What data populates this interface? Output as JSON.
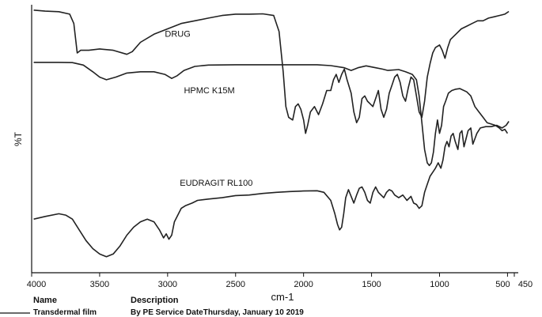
{
  "chart_data": {
    "type": "line",
    "title": "",
    "xlabel": "cm-1",
    "ylabel": "%T",
    "xlim": [
      4000,
      450
    ],
    "x_reversed": true,
    "ylim": [
      0,
      100
    ],
    "grid": false,
    "legend": "none",
    "x_ticks": [
      4000,
      3500,
      3000,
      2500,
      2000,
      1500,
      1000,
      500,
      450
    ],
    "x_tick_labels": [
      "4000",
      "3500",
      "3000",
      "2500",
      "2000",
      "1500",
      "1000",
      "500",
      "450"
    ],
    "line_color": "#222222",
    "series": [
      {
        "name": "DRUG",
        "label_at": [
          3020,
          88
        ],
        "points": [
          [
            3985,
            98
          ],
          [
            3900,
            97.6
          ],
          [
            3800,
            97.4
          ],
          [
            3720,
            96.5
          ],
          [
            3690,
            93
          ],
          [
            3665,
            82
          ],
          [
            3640,
            83
          ],
          [
            3580,
            83
          ],
          [
            3500,
            83.5
          ],
          [
            3400,
            83
          ],
          [
            3300,
            81.5
          ],
          [
            3260,
            82.5
          ],
          [
            3200,
            86
          ],
          [
            3100,
            89
          ],
          [
            3000,
            91
          ],
          [
            2900,
            93
          ],
          [
            2800,
            94
          ],
          [
            2700,
            95
          ],
          [
            2600,
            96
          ],
          [
            2500,
            96.5
          ],
          [
            2400,
            96.5
          ],
          [
            2300,
            96.6
          ],
          [
            2220,
            96
          ],
          [
            2180,
            90
          ],
          [
            2150,
            75
          ],
          [
            2130,
            62
          ],
          [
            2110,
            58
          ],
          [
            2080,
            57
          ],
          [
            2060,
            62
          ],
          [
            2040,
            63
          ],
          [
            2020,
            61
          ],
          [
            2000,
            57
          ],
          [
            1985,
            52
          ],
          [
            1970,
            55
          ],
          [
            1950,
            60
          ],
          [
            1920,
            62
          ],
          [
            1890,
            59
          ],
          [
            1860,
            63
          ],
          [
            1830,
            68
          ],
          [
            1800,
            68
          ],
          [
            1780,
            72
          ],
          [
            1760,
            74
          ],
          [
            1740,
            71
          ],
          [
            1720,
            74
          ],
          [
            1700,
            76
          ],
          [
            1680,
            72
          ],
          [
            1650,
            67
          ],
          [
            1630,
            60
          ],
          [
            1610,
            56
          ],
          [
            1590,
            58
          ],
          [
            1570,
            65
          ],
          [
            1550,
            66
          ],
          [
            1530,
            64
          ],
          [
            1510,
            63
          ],
          [
            1490,
            62
          ],
          [
            1470,
            65
          ],
          [
            1450,
            68
          ],
          [
            1430,
            61
          ],
          [
            1410,
            58
          ],
          [
            1390,
            61
          ],
          [
            1370,
            67
          ],
          [
            1350,
            70
          ],
          [
            1330,
            73
          ],
          [
            1310,
            74
          ],
          [
            1290,
            71
          ],
          [
            1270,
            66
          ],
          [
            1250,
            64
          ],
          [
            1230,
            69
          ],
          [
            1210,
            73
          ],
          [
            1190,
            72
          ],
          [
            1170,
            66
          ],
          [
            1150,
            60
          ],
          [
            1130,
            58
          ],
          [
            1110,
            64
          ],
          [
            1090,
            73
          ],
          [
            1070,
            78
          ],
          [
            1050,
            82
          ],
          [
            1030,
            84
          ],
          [
            1000,
            85
          ],
          [
            980,
            83
          ],
          [
            960,
            80
          ],
          [
            940,
            84
          ],
          [
            920,
            87
          ],
          [
            880,
            89
          ],
          [
            840,
            91
          ],
          [
            800,
            92
          ],
          [
            760,
            93
          ],
          [
            720,
            94
          ],
          [
            680,
            94
          ],
          [
            640,
            95
          ],
          [
            600,
            95.5
          ],
          [
            560,
            96
          ],
          [
            520,
            96.5
          ],
          [
            490,
            97.5
          ]
        ]
      },
      {
        "name": "HPMC K15M",
        "label_at": [
          2880,
          67
        ],
        "points": [
          [
            3985,
            78.5
          ],
          [
            3900,
            78.5
          ],
          [
            3800,
            78.5
          ],
          [
            3700,
            78.4
          ],
          [
            3620,
            77.5
          ],
          [
            3550,
            75
          ],
          [
            3500,
            73
          ],
          [
            3450,
            72
          ],
          [
            3380,
            73
          ],
          [
            3300,
            74.5
          ],
          [
            3200,
            75
          ],
          [
            3100,
            75
          ],
          [
            3020,
            74
          ],
          [
            2970,
            72.5
          ],
          [
            2930,
            73.5
          ],
          [
            2880,
            75.5
          ],
          [
            2800,
            77
          ],
          [
            2700,
            77.5
          ],
          [
            2500,
            77.6
          ],
          [
            2300,
            77.6
          ],
          [
            2100,
            77.6
          ],
          [
            1900,
            77.6
          ],
          [
            1800,
            77.3
          ],
          [
            1700,
            76.5
          ],
          [
            1650,
            75.5
          ],
          [
            1600,
            76.5
          ],
          [
            1540,
            77.2
          ],
          [
            1470,
            76.5
          ],
          [
            1420,
            76
          ],
          [
            1380,
            75.5
          ],
          [
            1300,
            75.8
          ],
          [
            1250,
            75
          ],
          [
            1200,
            74
          ],
          [
            1170,
            72
          ],
          [
            1150,
            66
          ],
          [
            1130,
            56
          ],
          [
            1110,
            46
          ],
          [
            1090,
            41
          ],
          [
            1075,
            40
          ],
          [
            1060,
            41
          ],
          [
            1045,
            45
          ],
          [
            1030,
            52
          ],
          [
            1015,
            57
          ],
          [
            1000,
            52
          ],
          [
            985,
            55
          ],
          [
            970,
            62
          ],
          [
            955,
            64
          ],
          [
            935,
            67
          ],
          [
            910,
            68
          ],
          [
            880,
            68.5
          ],
          [
            850,
            68.7
          ],
          [
            800,
            67.5
          ],
          [
            770,
            66
          ],
          [
            740,
            62
          ],
          [
            710,
            60
          ],
          [
            680,
            58
          ],
          [
            650,
            56
          ],
          [
            620,
            55.5
          ],
          [
            590,
            55
          ],
          [
            560,
            54
          ],
          [
            540,
            53
          ],
          [
            520,
            53.5
          ],
          [
            500,
            52
          ]
        ]
      },
      {
        "name": "EUDRAGIT RL100",
        "label_at": [
          2910,
          32.5
        ],
        "points": [
          [
            3985,
            20
          ],
          [
            3900,
            21
          ],
          [
            3800,
            22
          ],
          [
            3750,
            21.5
          ],
          [
            3700,
            20
          ],
          [
            3650,
            16
          ],
          [
            3600,
            12
          ],
          [
            3550,
            9
          ],
          [
            3500,
            7
          ],
          [
            3450,
            6
          ],
          [
            3400,
            7
          ],
          [
            3350,
            10
          ],
          [
            3300,
            14
          ],
          [
            3250,
            17
          ],
          [
            3200,
            19
          ],
          [
            3150,
            20
          ],
          [
            3100,
            19
          ],
          [
            3060,
            16
          ],
          [
            3030,
            13
          ],
          [
            3010,
            14.5
          ],
          [
            2990,
            12.5
          ],
          [
            2970,
            14
          ],
          [
            2950,
            19
          ],
          [
            2920,
            22
          ],
          [
            2900,
            24
          ],
          [
            2870,
            25
          ],
          [
            2820,
            26
          ],
          [
            2780,
            27
          ],
          [
            2700,
            27.5
          ],
          [
            2600,
            28
          ],
          [
            2500,
            28.8
          ],
          [
            2400,
            29
          ],
          [
            2300,
            29.6
          ],
          [
            2200,
            30
          ],
          [
            2100,
            30.3
          ],
          [
            2000,
            30.5
          ],
          [
            1900,
            30.6
          ],
          [
            1850,
            30
          ],
          [
            1800,
            27
          ],
          [
            1770,
            22
          ],
          [
            1750,
            18
          ],
          [
            1735,
            16
          ],
          [
            1720,
            17
          ],
          [
            1705,
            22
          ],
          [
            1690,
            28
          ],
          [
            1670,
            31
          ],
          [
            1650,
            28.5
          ],
          [
            1630,
            26
          ],
          [
            1610,
            29
          ],
          [
            1590,
            31.5
          ],
          [
            1570,
            32
          ],
          [
            1550,
            30
          ],
          [
            1530,
            27
          ],
          [
            1510,
            26
          ],
          [
            1490,
            30
          ],
          [
            1470,
            32
          ],
          [
            1450,
            30
          ],
          [
            1430,
            29
          ],
          [
            1410,
            28
          ],
          [
            1390,
            30
          ],
          [
            1370,
            31
          ],
          [
            1350,
            30.5
          ],
          [
            1330,
            29
          ],
          [
            1300,
            28
          ],
          [
            1270,
            29
          ],
          [
            1240,
            27
          ],
          [
            1210,
            28.5
          ],
          [
            1190,
            26
          ],
          [
            1170,
            25.5
          ],
          [
            1150,
            24
          ],
          [
            1130,
            25
          ],
          [
            1110,
            30
          ],
          [
            1090,
            33
          ],
          [
            1070,
            36
          ],
          [
            1050,
            37.5
          ],
          [
            1030,
            39
          ],
          [
            1010,
            41
          ],
          [
            990,
            39
          ],
          [
            975,
            42
          ],
          [
            960,
            47
          ],
          [
            945,
            49
          ],
          [
            930,
            47
          ],
          [
            915,
            51
          ],
          [
            900,
            52
          ],
          [
            885,
            49
          ],
          [
            865,
            46
          ],
          [
            850,
            52
          ],
          [
            835,
            53
          ],
          [
            820,
            47
          ],
          [
            805,
            50
          ],
          [
            790,
            53
          ],
          [
            770,
            54
          ],
          [
            755,
            48
          ],
          [
            740,
            50
          ],
          [
            725,
            52
          ],
          [
            700,
            54
          ],
          [
            660,
            54.5
          ],
          [
            620,
            54.5
          ],
          [
            580,
            55
          ],
          [
            540,
            54
          ],
          [
            510,
            55
          ],
          [
            490,
            56.5
          ]
        ]
      }
    ]
  },
  "footer": {
    "col1_header": "Name",
    "col2_header": "Description",
    "col1_value": "Transdermal film",
    "col2_value": "By PE Service DateThursday, January 10 2019"
  }
}
